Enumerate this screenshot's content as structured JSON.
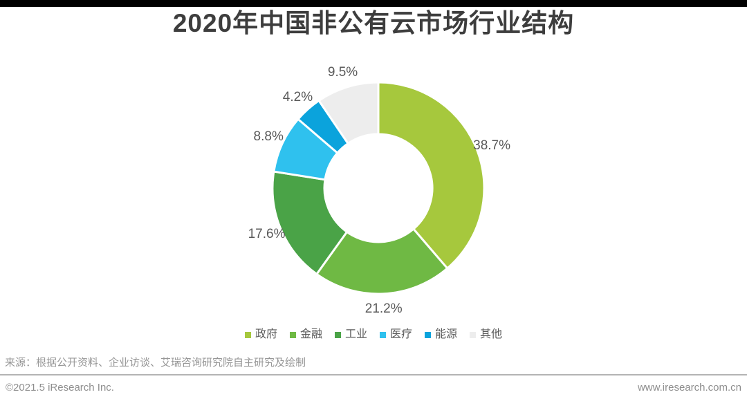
{
  "page": {
    "title": "2020年中国非公有云市场行业结构",
    "source_note": "来源：根据公开资料、企业访谈、艾瑞咨询研究院自主研究及绘制",
    "footer": {
      "copyright": "©2021.5 iResearch Inc.",
      "website": "www.iresearch.com.cn"
    }
  },
  "chart_data": {
    "type": "pie",
    "subtype": "donut",
    "title": "2020年中国非公有云市场行业结构",
    "unit": "%",
    "start_angle_deg": 0,
    "direction": "clockwise",
    "legend_position": "bottom",
    "label_format": "{value}%",
    "segments": [
      {
        "label": "政府",
        "value": 38.7,
        "color": "#a6c83d"
      },
      {
        "label": "金融",
        "value": 21.2,
        "color": "#6fb944"
      },
      {
        "label": "工业",
        "value": 17.6,
        "color": "#4aa347"
      },
      {
        "label": "医疗",
        "value": 8.8,
        "color": "#2fc1ee"
      },
      {
        "label": "能源",
        "value": 4.2,
        "color": "#0ba3dc"
      },
      {
        "label": "其他",
        "value": 9.5,
        "color": "#ededed"
      }
    ]
  }
}
